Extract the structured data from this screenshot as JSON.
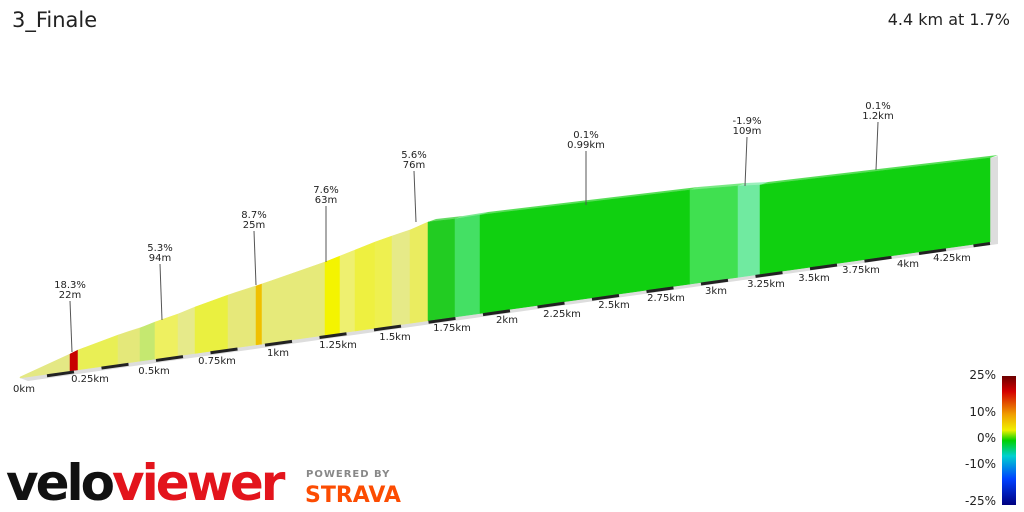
{
  "header": {
    "title": "3_Finale",
    "summary": "4.4 km at 1.7%"
  },
  "annotations": [
    {
      "grade": "18.3%",
      "length": "22m"
    },
    {
      "grade": "5.3%",
      "length": "94m"
    },
    {
      "grade": "8.7%",
      "length": "25m"
    },
    {
      "grade": "7.6%",
      "length": "63m"
    },
    {
      "grade": "5.6%",
      "length": "76m"
    },
    {
      "grade": "0.1%",
      "length": "0.99km"
    },
    {
      "grade": "-1.9%",
      "length": "109m"
    },
    {
      "grade": "0.1%",
      "length": "1.2km"
    }
  ],
  "distance_labels": [
    "0km",
    "0.25km",
    "0.5km",
    "0.75km",
    "1km",
    "1.25km",
    "1.5km",
    "1.75km",
    "2km",
    "2.25km",
    "2.5km",
    "2.75km",
    "3km",
    "3.25km",
    "3.5km",
    "3.75km",
    "4km",
    "4.25km"
  ],
  "legend": [
    "25%",
    "10%",
    "0%",
    "-10%",
    "-25%"
  ],
  "branding": {
    "logo_a": "velo",
    "logo_b": "viewer",
    "powered": "POWERED BY",
    "strava": "STRAVA"
  }
}
